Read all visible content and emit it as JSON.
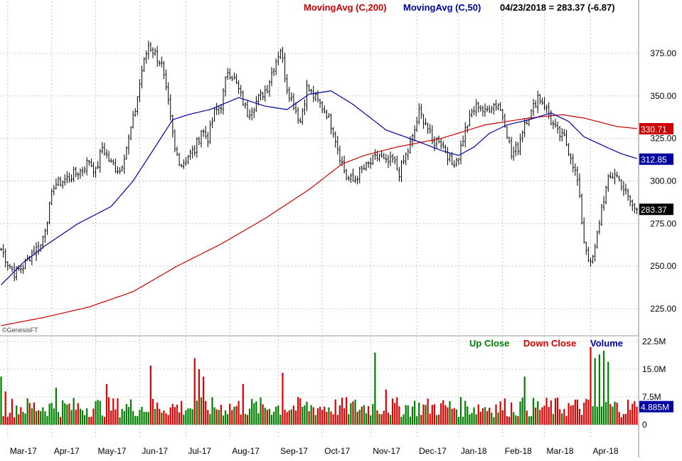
{
  "header": {
    "ma200_label": "MovingAvg (C,200)",
    "ma50_label": "MovingAvg (C,50)",
    "quote": "04/23/2018 = 283.37 (-6.87)"
  },
  "watermark": "©GenesisFT",
  "volume_legend": {
    "up": "Up Close",
    "down": "Down Close",
    "volume": "Volume"
  },
  "colors": {
    "ma200": "#cc0000",
    "ma50": "#0000a0",
    "up": "#008000",
    "down": "#dd0000",
    "price": "#000000",
    "price_tag_bg": "#000000",
    "ma200_tag_bg": "#cc0000",
    "ma50_tag_bg": "#0000a0",
    "volume_tag_bg": "#0000a0",
    "grid": "#bbbbbb"
  },
  "chart_data": [
    {
      "type": "ohlc",
      "title": "",
      "ylim": [
        212,
        398
      ],
      "yticks": [
        "225.00",
        "250.00",
        "275.00",
        "300.00",
        "325.00",
        "350.00",
        "375.00"
      ],
      "ytick_values": [
        225,
        250,
        275,
        300,
        325,
        350,
        375
      ],
      "xticks": [
        "Mar-17",
        "Apr-17",
        "May-17",
        "Jun-17",
        "Jul-17",
        "Aug-17",
        "Sep-17",
        "Oct-17",
        "Nov-17",
        "Dec-17",
        "Jan-18",
        "Feb-18",
        "Mar-18",
        "Apr-18"
      ],
      "xtick_days": [
        3,
        23,
        43,
        63,
        84,
        104,
        126,
        146,
        168,
        189,
        208,
        228,
        247,
        268
      ],
      "total_days": 290,
      "last_close": 283.37,
      "change": -6.87,
      "tags": {
        "price": "283.37",
        "ma200": "330.71",
        "ma50": "312.85"
      },
      "tag_values": {
        "price": 283.37,
        "ma200": 330.71,
        "ma50": 312.85
      },
      "closes": [
        [
          0,
          260
        ],
        [
          3,
          252
        ],
        [
          6,
          246
        ],
        [
          10,
          250
        ],
        [
          14,
          258
        ],
        [
          18,
          262
        ],
        [
          21,
          278
        ],
        [
          24,
          298
        ],
        [
          28,
          300
        ],
        [
          32,
          303
        ],
        [
          36,
          306
        ],
        [
          40,
          312
        ],
        [
          43,
          305
        ],
        [
          46,
          320
        ],
        [
          50,
          310
        ],
        [
          54,
          306
        ],
        [
          58,
          325
        ],
        [
          61,
          342
        ],
        [
          64,
          365
        ],
        [
          67,
          380
        ],
        [
          70,
          375
        ],
        [
          73,
          368
        ],
        [
          76,
          345
        ],
        [
          79,
          318
        ],
        [
          82,
          310
        ],
        [
          85,
          315
        ],
        [
          88,
          318
        ],
        [
          91,
          330
        ],
        [
          94,
          325
        ],
        [
          97,
          340
        ],
        [
          100,
          345
        ],
        [
          103,
          365
        ],
        [
          106,
          360
        ],
        [
          109,
          350
        ],
        [
          112,
          340
        ],
        [
          115,
          345
        ],
        [
          118,
          350
        ],
        [
          121,
          355
        ],
        [
          124,
          368
        ],
        [
          127,
          378
        ],
        [
          130,
          355
        ],
        [
          133,
          345
        ],
        [
          136,
          335
        ],
        [
          139,
          355
        ],
        [
          142,
          350
        ],
        [
          145,
          345
        ],
        [
          148,
          340
        ],
        [
          151,
          330
        ],
        [
          154,
          315
        ],
        [
          157,
          302
        ],
        [
          160,
          300
        ],
        [
          163,
          305
        ],
        [
          166,
          308
        ],
        [
          169,
          312
        ],
        [
          172,
          315
        ],
        [
          175,
          310
        ],
        [
          178,
          312
        ],
        [
          181,
          305
        ],
        [
          184,
          315
        ],
        [
          187,
          325
        ],
        [
          190,
          340
        ],
        [
          193,
          335
        ],
        [
          196,
          322
        ],
        [
          199,
          325
        ],
        [
          202,
          318
        ],
        [
          205,
          310
        ],
        [
          208,
          315
        ],
        [
          211,
          330
        ],
        [
          214,
          340
        ],
        [
          217,
          345
        ],
        [
          220,
          340
        ],
        [
          223,
          345
        ],
        [
          226,
          345
        ],
        [
          229,
          335
        ],
        [
          232,
          315
        ],
        [
          235,
          320
        ],
        [
          238,
          335
        ],
        [
          241,
          340
        ],
        [
          244,
          350
        ],
        [
          247,
          345
        ],
        [
          250,
          335
        ],
        [
          253,
          328
        ],
        [
          256,
          325
        ],
        [
          259,
          315
        ],
        [
          262,
          300
        ],
        [
          265,
          265
        ],
        [
          268,
          250
        ],
        [
          270,
          260
        ],
        [
          273,
          285
        ],
        [
          276,
          300
        ],
        [
          279,
          305
        ],
        [
          282,
          298
        ],
        [
          285,
          290
        ],
        [
          288,
          283.37
        ]
      ],
      "ma200": [
        [
          0,
          215
        ],
        [
          20,
          220
        ],
        [
          40,
          226
        ],
        [
          60,
          235
        ],
        [
          80,
          250
        ],
        [
          100,
          263
        ],
        [
          120,
          278
        ],
        [
          140,
          295
        ],
        [
          155,
          310
        ],
        [
          165,
          315
        ],
        [
          180,
          320
        ],
        [
          200,
          325
        ],
        [
          220,
          333
        ],
        [
          240,
          337
        ],
        [
          255,
          339
        ],
        [
          265,
          337
        ],
        [
          280,
          332
        ],
        [
          290,
          330.71
        ]
      ],
      "ma50": [
        [
          0,
          239
        ],
        [
          10,
          252
        ],
        [
          20,
          262
        ],
        [
          35,
          275
        ],
        [
          50,
          285
        ],
        [
          60,
          300
        ],
        [
          70,
          320
        ],
        [
          78,
          336
        ],
        [
          85,
          339
        ],
        [
          95,
          342
        ],
        [
          108,
          349
        ],
        [
          120,
          344
        ],
        [
          130,
          342
        ],
        [
          140,
          351
        ],
        [
          150,
          353
        ],
        [
          160,
          345
        ],
        [
          175,
          330
        ],
        [
          190,
          323
        ],
        [
          200,
          318
        ],
        [
          208,
          315
        ],
        [
          215,
          320
        ],
        [
          222,
          328
        ],
        [
          230,
          333
        ],
        [
          240,
          336
        ],
        [
          250,
          340
        ],
        [
          258,
          335
        ],
        [
          265,
          326
        ],
        [
          275,
          320
        ],
        [
          282,
          316
        ],
        [
          290,
          312.85
        ]
      ]
    },
    {
      "type": "bar",
      "title": "",
      "ylabel": "Volume",
      "ylim": [
        0,
        22.5
      ],
      "yticks": [
        "22.5M",
        "15.0M",
        "7.5M",
        "0"
      ],
      "ytick_values": [
        22.5,
        15.0,
        7.5,
        0
      ],
      "last_volume_label": "4.885M",
      "last_volume": 4.885,
      "spikes": [
        [
          0,
          13
        ],
        [
          2,
          9
        ],
        [
          25,
          10
        ],
        [
          48,
          11
        ],
        [
          68,
          16
        ],
        [
          88,
          18
        ],
        [
          90,
          15
        ],
        [
          92,
          13
        ],
        [
          110,
          11
        ],
        [
          128,
          14
        ],
        [
          170,
          19.5
        ],
        [
          175,
          9.5
        ],
        [
          238,
          13
        ],
        [
          268,
          21
        ],
        [
          270,
          18
        ],
        [
          272,
          19
        ],
        [
          274,
          20
        ],
        [
          276,
          17
        ]
      ]
    }
  ]
}
